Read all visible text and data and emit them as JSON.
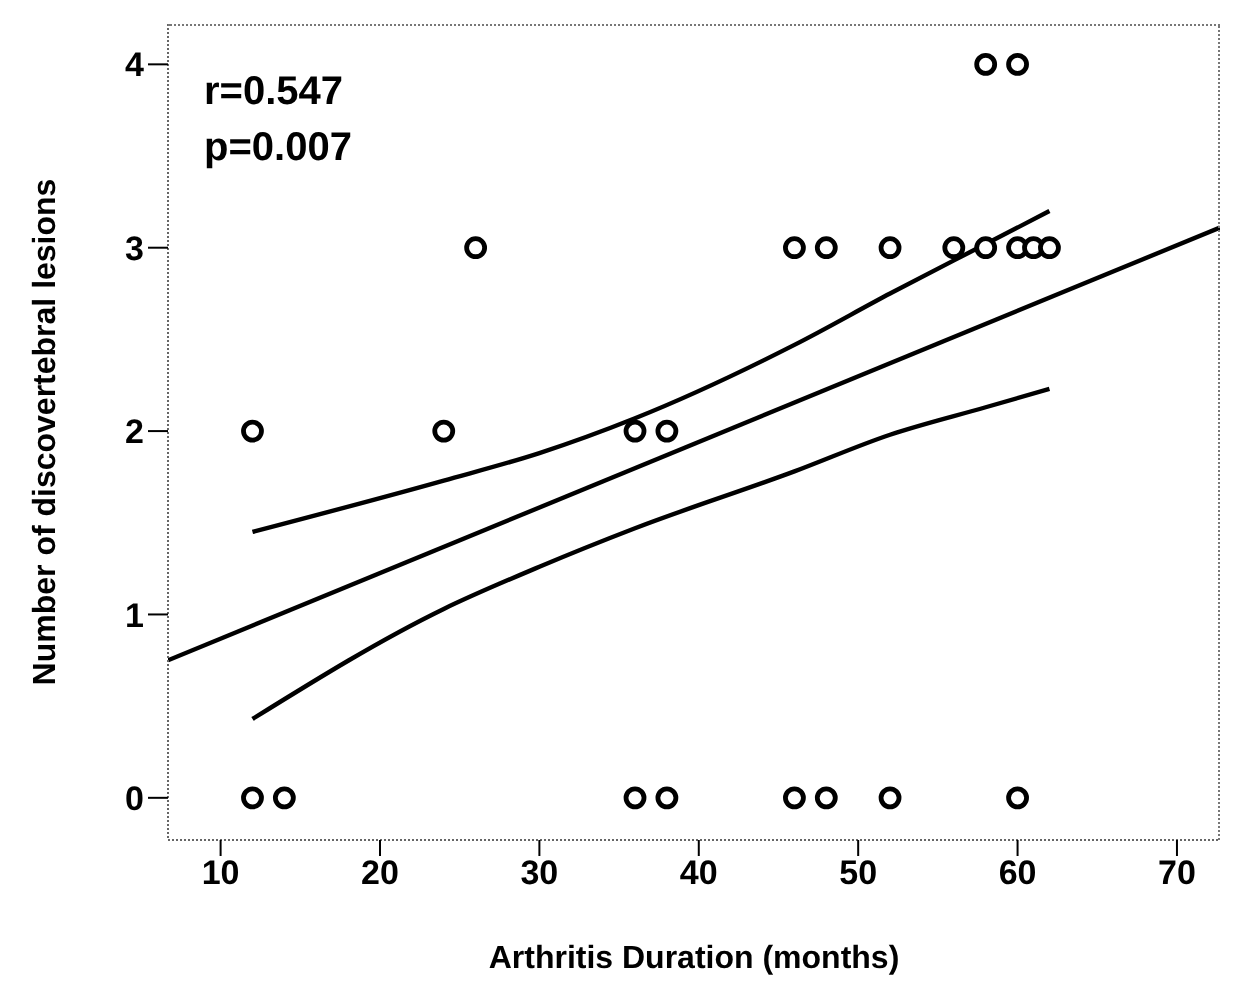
{
  "chart_data": {
    "type": "scatter",
    "xlabel": "Arthritis Duration (months)",
    "ylabel": "Number of discovertebral lesions",
    "xlim": [
      6.7,
      72.7
    ],
    "xticks": [
      10,
      20,
      30,
      40,
      50,
      60,
      70
    ],
    "ylim": [
      -0.23,
      4.22
    ],
    "yticks": [
      0,
      1,
      2,
      3,
      4
    ],
    "grid": false,
    "legend": false,
    "marker": "circle",
    "annotations": [
      "r=0.547",
      "p=0.007"
    ],
    "series": [
      {
        "type": "scatter",
        "color": "#000000",
        "x": [
          12,
          14,
          36,
          38,
          46,
          48,
          52,
          60,
          12,
          24,
          36,
          38,
          26,
          46,
          48,
          52,
          56,
          58,
          60,
          61,
          62,
          58,
          60
        ],
        "values": [
          0,
          0,
          0,
          0,
          0,
          0,
          0,
          0,
          2,
          2,
          2,
          2,
          3,
          3,
          3,
          3,
          3,
          3,
          3,
          3,
          3,
          4,
          4
        ]
      },
      {
        "type": "line",
        "color": "#000000",
        "line_style": "solid",
        "marker": "none",
        "x": [
          6.7,
          72.7
        ],
        "values": [
          0.75,
          3.11
        ]
      },
      {
        "type": "line",
        "color": "#000000",
        "line_style": "solid",
        "marker": "none",
        "x": [
          12,
          24,
          30,
          36,
          46,
          52,
          58,
          62
        ],
        "values": [
          1.45,
          1.73,
          1.88,
          2.07,
          2.47,
          2.75,
          3.02,
          3.2
        ]
      },
      {
        "type": "line",
        "color": "#000000",
        "line_style": "solid",
        "marker": "none",
        "x": [
          12,
          24,
          30,
          36,
          46,
          52,
          58,
          62
        ],
        "values": [
          0.43,
          1.03,
          1.26,
          1.47,
          1.78,
          1.98,
          2.13,
          2.23
        ]
      }
    ]
  }
}
